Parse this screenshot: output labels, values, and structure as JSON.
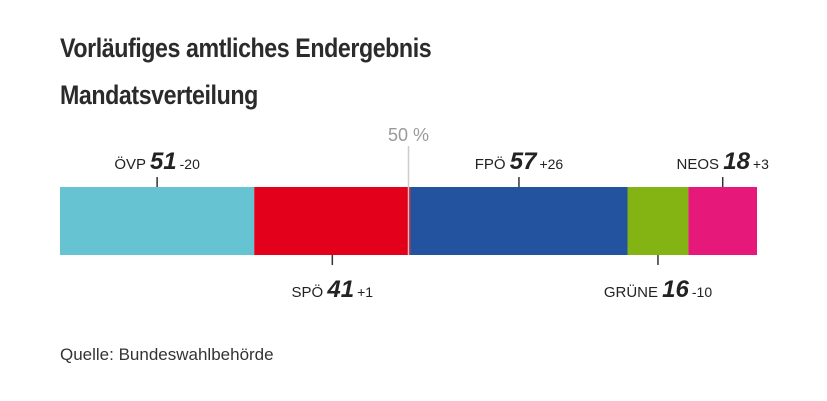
{
  "title": "Vorläufiges amtliches Endergebnis",
  "subtitle": "Mandatsverteilung",
  "source": "Quelle: Bundeswahlbehörde",
  "chart_data": {
    "type": "bar",
    "orientation": "horizontal-stacked",
    "total_seats": 183,
    "majority_marker_label": "50 %",
    "majority_marker_value": 91.5,
    "parties": [
      {
        "name": "ÖVP",
        "seats": 51,
        "change": "-20",
        "color": "#66c3d1",
        "label_position": "top"
      },
      {
        "name": "SPÖ",
        "seats": 41,
        "change": "+1",
        "color": "#e2001a",
        "label_position": "bottom"
      },
      {
        "name": "FPÖ",
        "seats": 57,
        "change": "+26",
        "color": "#23529e",
        "label_position": "top"
      },
      {
        "name": "GRÜNE",
        "seats": 16,
        "change": "-10",
        "color": "#84b414",
        "label_position": "bottom"
      },
      {
        "name": "NEOS",
        "seats": 18,
        "change": "+3",
        "color": "#e6197a",
        "label_position": "top"
      }
    ]
  }
}
